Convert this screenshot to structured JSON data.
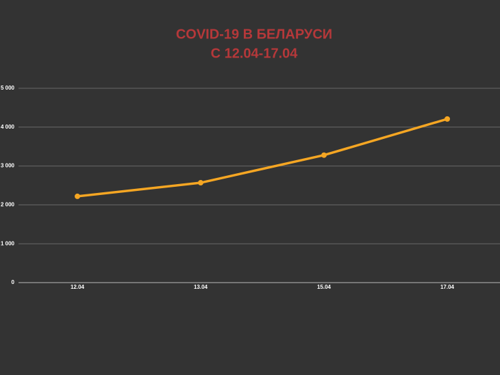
{
  "chart_data": {
    "type": "line",
    "title": [
      "COVID-19 В БЕЛАРУСИ",
      "С 12.04-17.04"
    ],
    "categories": [
      "12.04",
      "13.04",
      "15.04",
      "17.04"
    ],
    "series": [
      {
        "name": "COVID-19",
        "color": "#f5a623",
        "values": [
          2220,
          2570,
          3280,
          4210
        ]
      }
    ],
    "ylim": [
      0,
      5000
    ],
    "yticks": [
      0,
      {
        "value": 1000,
        "label": "1 000"
      },
      {
        "value": 2000,
        "label": "2 000"
      },
      {
        "value": 3000,
        "label": "3 000"
      },
      {
        "value": 4000,
        "label": "4 000"
      },
      {
        "value": 5000,
        "label": "5 000"
      }
    ],
    "grid": true,
    "legend": false
  }
}
